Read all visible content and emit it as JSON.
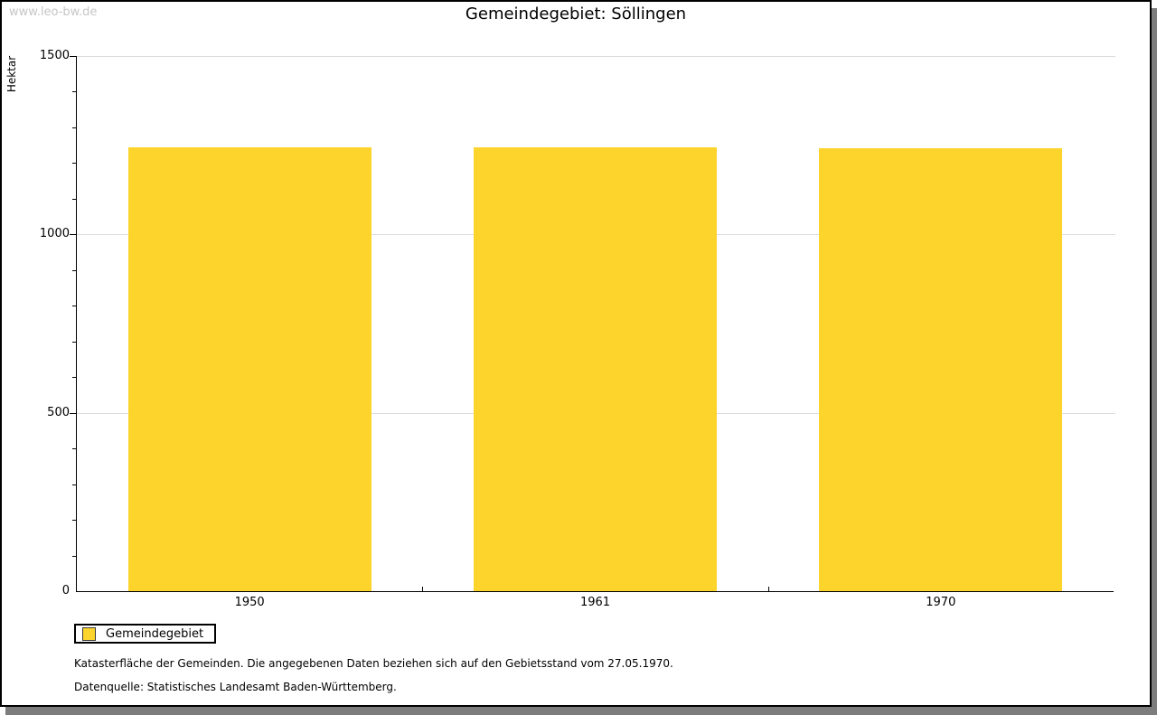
{
  "watermark": "www.leo-bw.de",
  "title": "Gemeindegebiet: Söllingen",
  "legend": {
    "label": "Gemeindegebiet"
  },
  "footnotes": [
    "Katasterfläche der Gemeinden. Die angegebenen Daten beziehen sich auf den Gebietsstand vom 27.05.1970.",
    "Datenquelle: Statistisches Landesamt Baden-Württemberg."
  ],
  "chart_data": {
    "type": "bar",
    "title": "Gemeindegebiet: Söllingen",
    "ylabel": "Hektar",
    "xlabel": "",
    "categories": [
      "1950",
      "1961",
      "1970"
    ],
    "series": [
      {
        "name": "Gemeindegebiet",
        "values": [
          1245,
          1243,
          1241
        ]
      }
    ],
    "ylim": [
      0,
      1500
    ],
    "yticks_major": [
      0,
      500,
      1000,
      1500
    ],
    "ytick_minor_step": 100,
    "grid": true,
    "legend_position": "bottom-left",
    "bar_color": "#FCD42C",
    "gridline_color": "#dcdcdc",
    "axis_color": "#000000",
    "watermark_color": "#c6c6c6"
  }
}
